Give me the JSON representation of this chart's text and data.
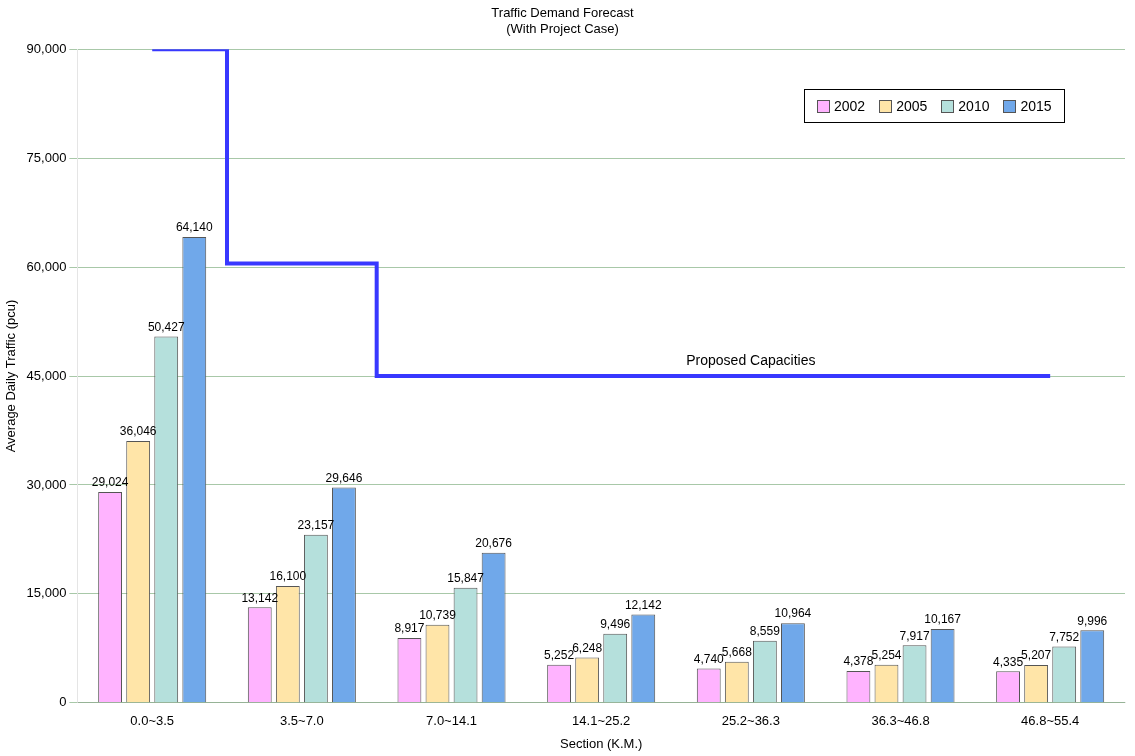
{
  "chart_data": {
    "type": "bar",
    "title": "Traffic Demand Forecast",
    "subtitle": "(With Project Case)",
    "xlabel": "Section (K.M.)",
    "ylabel": "Average Daily Traffic (pcu)",
    "categories": [
      "0.0~3.5",
      "3.5~7.0",
      "7.0~14.1",
      "14.1~25.2",
      "25.2~36.3",
      "36.3~46.8",
      "46.8~55.4"
    ],
    "series": [
      {
        "name": "2002",
        "color": "#ffb3ff",
        "values": [
          29024,
          13142,
          8917,
          5252,
          4740,
          4378,
          4335
        ],
        "value_labels": [
          "29,024",
          "13,142",
          "8,917",
          "5,252",
          "4,740",
          "4,378",
          "4,335"
        ]
      },
      {
        "name": "2005",
        "color": "#ffe5a8",
        "values": [
          36046,
          16100,
          10739,
          6248,
          5668,
          5254,
          5207
        ],
        "value_labels": [
          "36,046",
          "16,100",
          "10,739",
          "6,248",
          "5,668",
          "5,254",
          "5,207"
        ]
      },
      {
        "name": "2010",
        "color": "#b5e0dc",
        "values": [
          50427,
          23157,
          15847,
          9496,
          8559,
          7917,
          7752
        ],
        "value_labels": [
          "50,427",
          "23,157",
          "15,847",
          "9,496",
          "8,559",
          "7,917",
          "7,752"
        ]
      },
      {
        "name": "2015",
        "color": "#70a8ea",
        "values": [
          64140,
          29646,
          20676,
          12142,
          10964,
          10167,
          9996
        ],
        "value_labels": [
          "64,140",
          "29,646",
          "20,676",
          "12,142",
          "10,964",
          "10,167",
          "9,996"
        ]
      },
      {
        "name": "Proposed Capacities",
        "type": "step",
        "color": "#3838ff",
        "values": [
          90000,
          60500,
          45000,
          45000,
          45000,
          45000,
          45000
        ]
      }
    ],
    "ylim": [
      0,
      90000
    ],
    "yticks": [
      {
        "value": 0,
        "label": "0"
      },
      {
        "value": 15000,
        "label": "15,000"
      },
      {
        "value": 30000,
        "label": "30,000"
      },
      {
        "value": 45000,
        "label": "45,000"
      },
      {
        "value": 60000,
        "label": "60,000"
      },
      {
        "value": 75000,
        "label": "75,000"
      },
      {
        "value": 90000,
        "label": "90,000"
      }
    ],
    "grid": "y",
    "legend": "top right"
  }
}
